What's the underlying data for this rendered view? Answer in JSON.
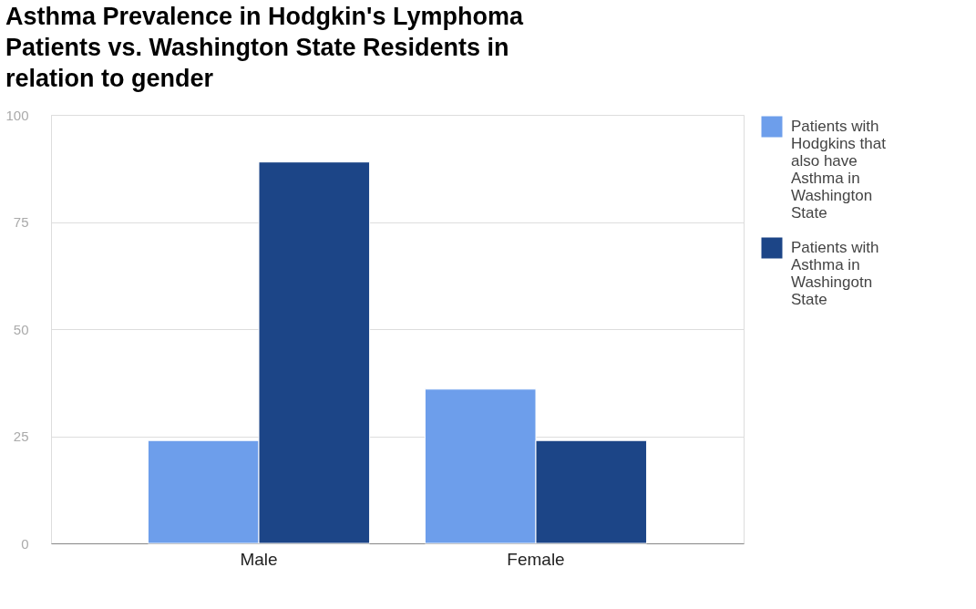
{
  "chart_data": {
    "type": "bar",
    "title": "Asthma Prevalence in Hodgkin's Lymphoma Patients vs. Washington State Residents in relation to gender",
    "categories": [
      "Male",
      "Female"
    ],
    "series": [
      {
        "name": "Patients with Hodgkins that also have Asthma in Washington State",
        "color": "#6d9eeb",
        "values": [
          24,
          36
        ]
      },
      {
        "name": "Patients with Asthma in Washingotn State",
        "color": "#1c4587",
        "values": [
          89,
          24
        ]
      }
    ],
    "ylim": [
      0,
      100
    ],
    "yticks": [
      0,
      25,
      50,
      75,
      100
    ],
    "grid": "y",
    "legend": "right"
  }
}
